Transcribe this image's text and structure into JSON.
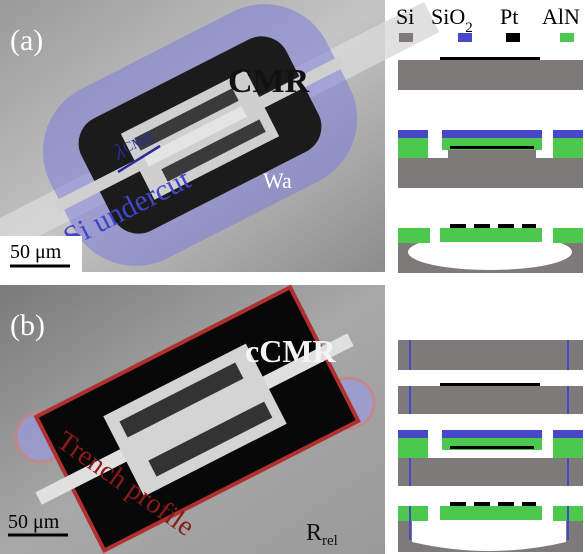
{
  "panel_a": {
    "label": "(a)",
    "device": "CMR",
    "wavelength_symbol": "λ",
    "wavelength_subscript": "CMR",
    "width_label": "Wa",
    "undercut_label": "Si undercut",
    "scale_bar": "50 μm"
  },
  "legend": [
    {
      "name": "Si"
    },
    {
      "name": "SiO",
      "subscript": "2"
    },
    {
      "name": "Pt"
    },
    {
      "name": "AlN"
    }
  ],
  "panel_b": {
    "label": "(b)",
    "device": "cCMR",
    "trench_label": "Trench profile",
    "radius_symbol": "R",
    "radius_subscript": "rel",
    "scale_bar": "50 μm"
  }
}
